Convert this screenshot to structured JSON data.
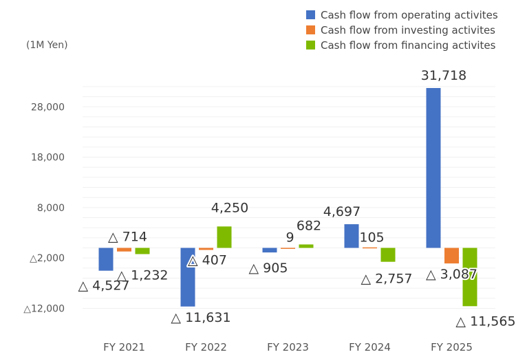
{
  "chart_data": {
    "type": "bar",
    "unit_label": "(1M Yen)",
    "categories": [
      "FY 2021",
      "FY 2022",
      "FY 2023",
      "FY 2024",
      "FY 2025"
    ],
    "series": [
      {
        "name": "Cash flow from operating activites",
        "color": "#4472C4",
        "values": [
          -4527,
          -11631,
          -905,
          4697,
          31718
        ],
        "labels": [
          "△ 4,527",
          "△ 11,631",
          "△ 905",
          "4,697",
          "31,718"
        ]
      },
      {
        "name": "Cash flow from investing activites",
        "color": "#ED7D31",
        "values": [
          -714,
          -407,
          9,
          105,
          -3087
        ],
        "labels": [
          "△ 714",
          "△ 407",
          "9",
          "105",
          "△ 3,087"
        ]
      },
      {
        "name": "Cash flow from financing activites",
        "color": "#7FBA00",
        "values": [
          -1232,
          4250,
          682,
          -2757,
          -11565
        ],
        "labels": [
          "△ 1,232",
          "4,250",
          "682",
          "△ 2,757",
          "△ 11,565"
        ]
      }
    ],
    "y_ticks": [
      {
        "value": 28000,
        "label": "28,000"
      },
      {
        "value": 18000,
        "label": "18,000"
      },
      {
        "value": 8000,
        "label": "8,000"
      },
      {
        "value": -2000,
        "label": "△2,000"
      },
      {
        "value": -12000,
        "label": "△12,000"
      }
    ],
    "ylim": [
      -12000,
      33000
    ],
    "grid": true,
    "legend_position": "top-right"
  }
}
